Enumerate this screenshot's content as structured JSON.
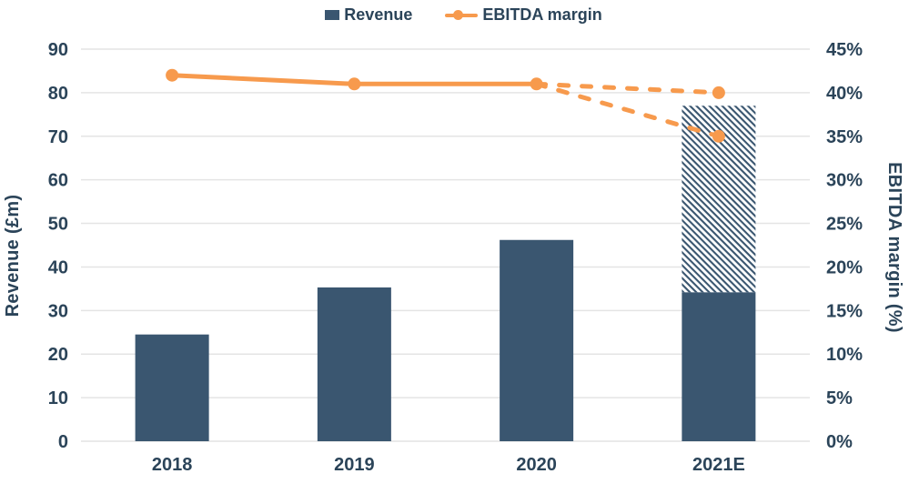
{
  "legend": {
    "revenue_label": "Revenue",
    "ebitda_label": "EBITDA margin"
  },
  "axes": {
    "left_title": "Revenue (£m)",
    "right_title": "EBITDA margin (%)",
    "left_ticks": [
      "0",
      "10",
      "20",
      "30",
      "40",
      "50",
      "60",
      "70",
      "80",
      "90"
    ],
    "right_ticks": [
      "0%",
      "5%",
      "10%",
      "15%",
      "20%",
      "25%",
      "30%",
      "35%",
      "40%",
      "45%"
    ],
    "categories": [
      "2018",
      "2019",
      "2020",
      "2021E"
    ]
  },
  "colors": {
    "bar_navy": "#3A5670",
    "line_orange": "#F79A4D",
    "text_navy": "#2B4459",
    "gridline_gray": "#E4E4E4"
  },
  "chart_data": {
    "type": "combo-bar-line",
    "title": "",
    "categories": [
      "2018",
      "2019",
      "2020",
      "2021E"
    ],
    "grid": "horizontal",
    "legend_position": "top",
    "left_axis": {
      "label": "Revenue (£m)",
      "min": 0,
      "max": 90,
      "step": 10
    },
    "right_axis": {
      "label": "EBITDA margin (%)",
      "min": 0,
      "max": 45,
      "step": 5,
      "format": "percent"
    },
    "series": [
      {
        "name": "Revenue",
        "type": "bar",
        "axis": "left",
        "values": [
          24.5,
          35.3,
          46.2,
          34.2
        ],
        "forecast_upside": {
          "category_index": 3,
          "category": "2021E",
          "from": 34.2,
          "to": 77,
          "style": "diagonal-hatch"
        }
      },
      {
        "name": "EBITDA margin",
        "type": "line",
        "axis": "right",
        "solid_values": [
          42,
          41,
          41
        ],
        "forecast_scenarios": [
          {
            "from_index": 2,
            "from_value": 41,
            "to_index": 3,
            "to_value": 40,
            "style": "dashed"
          },
          {
            "from_index": 2,
            "from_value": 41,
            "to_index": 3,
            "to_value": 35,
            "style": "dashed"
          }
        ]
      }
    ]
  }
}
